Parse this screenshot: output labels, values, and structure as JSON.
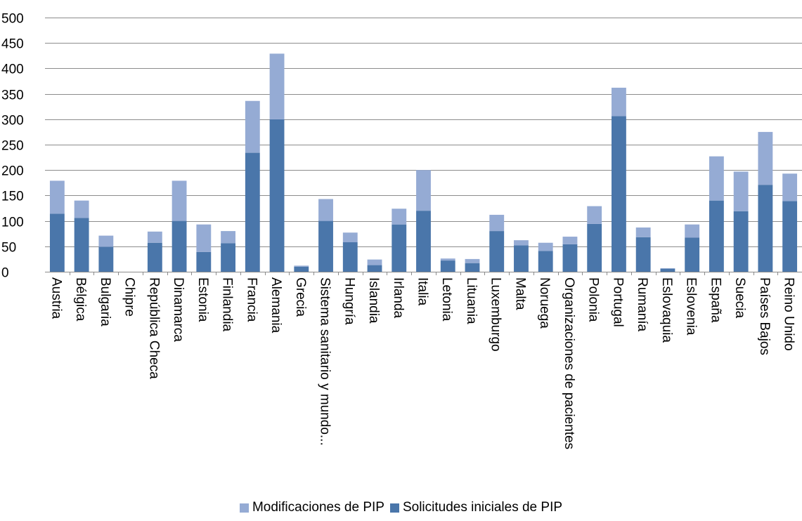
{
  "colors": {
    "modificaciones": "#95abd4",
    "solicitudes": "#4a76aa",
    "grid": "#8c8c8c",
    "axis": "#8c8c8c"
  },
  "legend": {
    "modificaciones_label": "Modificaciones de PIP",
    "solicitudes_label": "Solicitudes iniciales de PIP"
  },
  "chart_data": {
    "type": "bar",
    "stacked": true,
    "title": "",
    "xlabel": "",
    "ylabel": "",
    "ylim": [
      0,
      500
    ],
    "yticks": [
      0,
      50,
      100,
      150,
      200,
      250,
      300,
      350,
      400,
      450,
      500
    ],
    "grid": true,
    "legend_position": "bottom",
    "categories": [
      "Austria",
      "Bélgica",
      "Bulgaria",
      "Chipre",
      "República Checa",
      "Dinamarca",
      "Estonia",
      "Finlandia",
      "Francia",
      "Alemania",
      "Grecia",
      "Sistema sanitario y mundo...",
      "Hungría",
      "Islandia",
      "Irlanda",
      "Italia",
      "Letonia",
      "Lituania",
      "Luxemburgo",
      "Malta",
      "Noruega",
      "Organizaciones de pacientes",
      "Polonia",
      "Portugal",
      "Rumanía",
      "Eslovaquia",
      "Eslovenia",
      "España",
      "Suecia",
      "Países Bajos",
      "Reino Unido"
    ],
    "series": [
      {
        "name": "Solicitudes iniciales de PIP",
        "values": [
          114,
          106,
          49,
          0,
          57,
          100,
          39,
          56,
          234,
          300,
          10,
          100,
          58,
          13,
          93,
          120,
          22,
          17,
          80,
          52,
          41,
          54,
          94,
          306,
          68,
          6,
          67,
          140,
          119,
          171,
          139
        ]
      },
      {
        "name": "Modificaciones de PIP",
        "values": [
          65,
          34,
          22,
          0,
          22,
          79,
          54,
          24,
          102,
          129,
          2,
          43,
          19,
          11,
          31,
          80,
          4,
          8,
          32,
          10,
          16,
          15,
          35,
          56,
          19,
          1,
          26,
          87,
          78,
          104,
          54
        ]
      }
    ]
  }
}
